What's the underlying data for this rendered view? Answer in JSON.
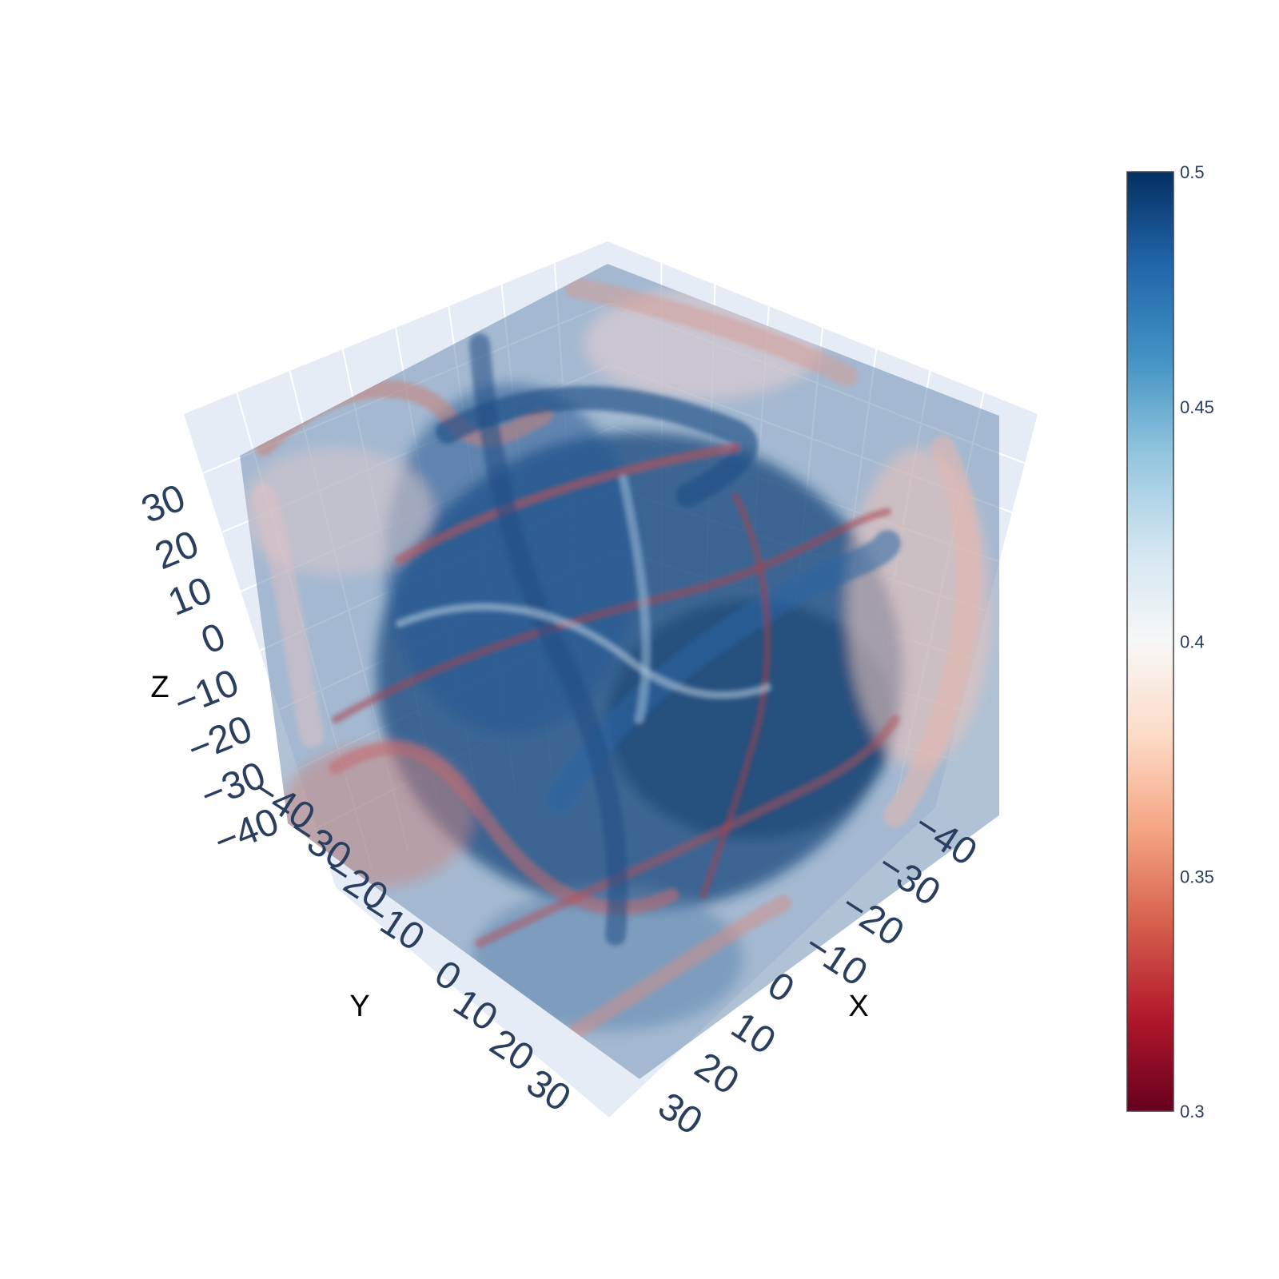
{
  "chart_data": {
    "type": "volume",
    "title": "",
    "axes": {
      "x": {
        "title": "X",
        "ticks": [
          "−40",
          "−30",
          "−20",
          "−10",
          "0",
          "10",
          "20",
          "30"
        ],
        "range": [
          -45,
          38
        ]
      },
      "y": {
        "title": "Y",
        "ticks": [
          "−40",
          "−30",
          "−20",
          "−10",
          "0",
          "10",
          "20",
          "30"
        ],
        "range": [
          -45,
          38
        ]
      },
      "z": {
        "title": "Z",
        "ticks": [
          "−40",
          "−30",
          "−20",
          "−10",
          "0",
          "10",
          "20",
          "30"
        ],
        "range": [
          -45,
          38
        ]
      }
    },
    "colorscale": {
      "name": "RdBu",
      "range": [
        0.3,
        0.5
      ],
      "ticks": [
        "0.3",
        "0.35",
        "0.4",
        "0.45",
        "0.5"
      ],
      "colors": [
        "#67001f",
        "#b2182b",
        "#d6604d",
        "#f4a582",
        "#fddbc7",
        "#f7f7f7",
        "#d1e5f0",
        "#92c5de",
        "#4393c3",
        "#2166ac",
        "#053061"
      ]
    },
    "scene_background": "#e5ecf6",
    "grid_color": "#ffffff"
  }
}
